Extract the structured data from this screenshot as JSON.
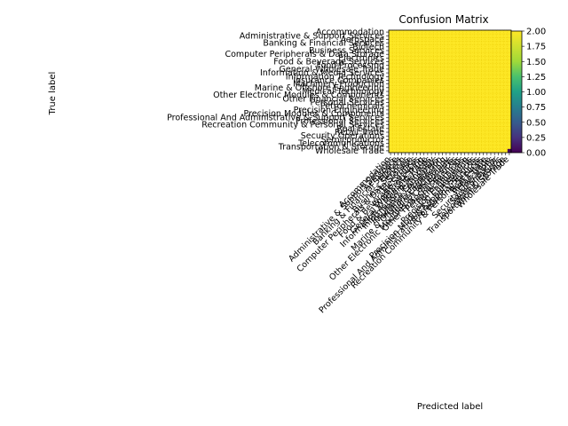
{
  "chart_data": {
    "type": "heatmap",
    "title": "Confusion Matrix",
    "xlabel": "Predicted label",
    "ylabel": "True label",
    "labels": [
      "Accommodation",
      "Administrative & Support Services",
      "Aerospace",
      "Banking & Financial Services",
      "Biotech",
      "Business Services",
      "Computer Peripherals & Data Storage",
      "Electronics",
      "Food & Beverage Services",
      "Food Processing",
      "General Wholesale Trade",
      "Information & Media Services",
      "Information Technology",
      "Insurance Companies",
      "Machinery Production",
      "Marine & Offshore Engineering",
      "Medical Technology",
      "Other Electronic Modules & Components",
      "Other Financial Services",
      "Personal Services",
      "Petrochemicals",
      "Precision Engineering",
      "Precision Modules & Components",
      "Professional And Administrative & Support Services",
      "Professional Services",
      "Recreation Community & Personal Services",
      "Real Estate",
      "Retail Trade",
      "Security Operations",
      "Semiconductor",
      "Telecommunications",
      "Transportation & Storage",
      "Wholesale Trade"
    ],
    "colorbar": {
      "min": 0.0,
      "max": 2.0,
      "ticks": [
        "0.00",
        "0.25",
        "0.50",
        "0.75",
        "1.00",
        "1.25",
        "1.50",
        "1.75",
        "2.00"
      ],
      "colormap": "viridis"
    },
    "grid": true
  }
}
